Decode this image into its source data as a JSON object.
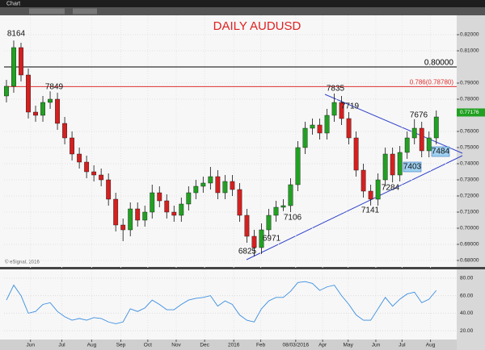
{
  "chart_data": {
    "type": "candlestick",
    "window_title": "Chart",
    "title": "DAILY AUDUSD",
    "credit": "© eSignal, 2016",
    "open": [
      0.782,
      0.788,
      0.812,
      0.795,
      0.772,
      0.77,
      0.778,
      0.78,
      0.765,
      0.756,
      0.746,
      0.741,
      0.735,
      0.733,
      0.73,
      0.718,
      0.702,
      0.699,
      0.712,
      0.705,
      0.71,
      0.722,
      0.717,
      0.71,
      0.708,
      0.715,
      0.722,
      0.726,
      0.728,
      0.732,
      0.722,
      0.729,
      0.724,
      0.708,
      0.695,
      0.688,
      0.699,
      0.708,
      0.713,
      0.714,
      0.727,
      0.75,
      0.762,
      0.764,
      0.759,
      0.77,
      0.778,
      0.768,
      0.756,
      0.736,
      0.723,
      0.718,
      0.73,
      0.746,
      0.733,
      0.747,
      0.756,
      0.762,
      0.748,
      0.756
    ],
    "high": [
      0.792,
      0.8164,
      0.815,
      0.799,
      0.776,
      0.782,
      0.7849,
      0.784,
      0.769,
      0.76,
      0.75,
      0.745,
      0.739,
      0.737,
      0.734,
      0.722,
      0.706,
      0.716,
      0.716,
      0.714,
      0.727,
      0.726,
      0.721,
      0.714,
      0.719,
      0.726,
      0.73,
      0.732,
      0.738,
      0.736,
      0.733,
      0.733,
      0.728,
      0.712,
      0.699,
      0.703,
      0.712,
      0.717,
      0.718,
      0.731,
      0.754,
      0.766,
      0.768,
      0.768,
      0.774,
      0.7835,
      0.782,
      0.772,
      0.76,
      0.74,
      0.727,
      0.734,
      0.75,
      0.75,
      0.751,
      0.76,
      0.7676,
      0.766,
      0.76,
      0.773
    ],
    "low": [
      0.778,
      0.784,
      0.791,
      0.768,
      0.766,
      0.766,
      0.774,
      0.761,
      0.752,
      0.742,
      0.737,
      0.731,
      0.729,
      0.726,
      0.714,
      0.698,
      0.692,
      0.695,
      0.701,
      0.701,
      0.706,
      0.713,
      0.706,
      0.704,
      0.704,
      0.711,
      0.718,
      0.722,
      0.724,
      0.718,
      0.718,
      0.72,
      0.704,
      0.691,
      0.6825,
      0.684,
      0.695,
      0.704,
      0.7106,
      0.71,
      0.723,
      0.746,
      0.758,
      0.755,
      0.755,
      0.766,
      0.764,
      0.752,
      0.732,
      0.719,
      0.7141,
      0.714,
      0.726,
      0.7284,
      0.729,
      0.743,
      0.752,
      0.744,
      0.744,
      0.752
    ],
    "close": [
      0.788,
      0.812,
      0.795,
      0.772,
      0.77,
      0.778,
      0.78,
      0.765,
      0.756,
      0.746,
      0.741,
      0.735,
      0.733,
      0.73,
      0.718,
      0.702,
      0.699,
      0.712,
      0.705,
      0.71,
      0.722,
      0.717,
      0.71,
      0.708,
      0.715,
      0.722,
      0.726,
      0.728,
      0.732,
      0.722,
      0.729,
      0.724,
      0.708,
      0.695,
      0.688,
      0.699,
      0.708,
      0.713,
      0.714,
      0.727,
      0.75,
      0.762,
      0.764,
      0.759,
      0.77,
      0.778,
      0.768,
      0.756,
      0.736,
      0.723,
      0.718,
      0.73,
      0.746,
      0.733,
      0.747,
      0.756,
      0.762,
      0.748,
      0.756,
      0.769
    ],
    "up_color": "#22a022",
    "down_color": "#d42020",
    "xlim": [
      -0.33,
      61.8
    ],
    "xticks": [
      {
        "value": 3.3,
        "label": "Jun"
      },
      {
        "value": 7.6,
        "label": "Jul"
      },
      {
        "value": 11.7,
        "label": "Aug"
      },
      {
        "value": 15.7,
        "label": "Sep"
      },
      {
        "value": 19.4,
        "label": "Oct"
      },
      {
        "value": 23.3,
        "label": "Nov"
      },
      {
        "value": 27.2,
        "label": "Dec"
      },
      {
        "value": 31.2,
        "label": "2016"
      },
      {
        "value": 34.9,
        "label": "Feb"
      },
      {
        "value": 39.7,
        "label": "08/03/2016"
      },
      {
        "value": 43.4,
        "label": "Apr"
      },
      {
        "value": 46.9,
        "label": "May"
      },
      {
        "value": 50.7,
        "label": "Jun"
      },
      {
        "value": 54.3,
        "label": "Jul"
      },
      {
        "value": 58.2,
        "label": "Aug"
      }
    ],
    "ylim": [
      0.676,
      0.832
    ],
    "yticks": [
      {
        "value": 0.82,
        "label": "0.82000"
      },
      {
        "value": 0.81,
        "label": "0.81000"
      },
      {
        "value": 0.79,
        "label": "0.79000"
      },
      {
        "value": 0.78,
        "label": "0.78000"
      },
      {
        "value": 0.76,
        "label": "0.76000"
      },
      {
        "value": 0.75,
        "label": "0.75000"
      },
      {
        "value": 0.74,
        "label": "0.74000"
      },
      {
        "value": 0.73,
        "label": "0.73000"
      },
      {
        "value": 0.72,
        "label": "0.72000"
      },
      {
        "value": 0.71,
        "label": "0.71000"
      },
      {
        "value": 0.7,
        "label": "0.70000"
      },
      {
        "value": 0.69,
        "label": "0.69000"
      },
      {
        "value": 0.68,
        "label": "0.68000"
      }
    ],
    "grid": true,
    "price_tag": {
      "value": 0.77176,
      "label": "0.77176",
      "color": "#22a022"
    },
    "hlines": [
      {
        "value": 0.8,
        "label": "0.80000",
        "color": "#000000"
      },
      {
        "value": 0.7878,
        "label": "0.786(0.78780)",
        "color": "#e03030"
      }
    ],
    "annotations": [
      "8164",
      "7849",
      "7835",
      "7719",
      "7676",
      "7484",
      "7403",
      "7284",
      "7141",
      "7106",
      "6971",
      "6825"
    ],
    "title_color": "#e02020",
    "oscillator": {
      "color": "#3a8ee0",
      "values": [
        55,
        72,
        60,
        40,
        42,
        50,
        52,
        42,
        36,
        32,
        34,
        32,
        35,
        34,
        30,
        28,
        30,
        45,
        42,
        46,
        55,
        50,
        44,
        44,
        50,
        55,
        57,
        58,
        60,
        48,
        54,
        50,
        38,
        32,
        30,
        45,
        54,
        58,
        58,
        65,
        75,
        76,
        74,
        66,
        70,
        72,
        60,
        50,
        38,
        32,
        32,
        45,
        58,
        48,
        56,
        62,
        64,
        52,
        56,
        66
      ],
      "ylim": [
        10,
        90
      ],
      "yticks": [
        {
          "value": 80,
          "label": "80.00"
        },
        {
          "value": 60,
          "label": "60.00"
        },
        {
          "value": 40,
          "label": "40.00"
        },
        {
          "value": 20,
          "label": "20.00"
        }
      ]
    }
  }
}
